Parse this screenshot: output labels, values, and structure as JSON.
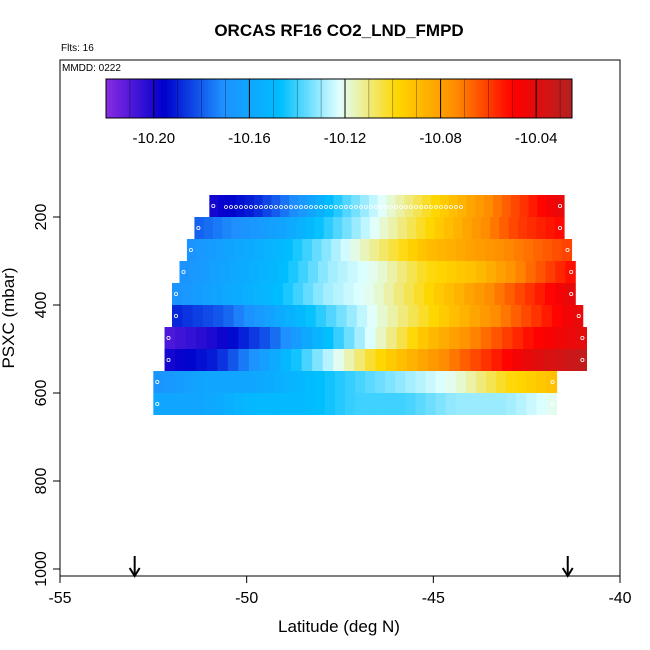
{
  "chart_data": {
    "type": "heatmap",
    "title": "ORCAS RF16 CO2_LND_FMPD",
    "subtitle_flights": "Flts: 16",
    "subtitle_date": "MMDD: 0222",
    "xlabel": "Latitude (deg N)",
    "ylabel": "PSXC (mbar)",
    "xlim": [
      -55,
      -40
    ],
    "ylim": [
      1000,
      0
    ],
    "x_ticks": [
      "-55",
      "-50",
      "-45",
      "-40"
    ],
    "y_ticks": [
      "200",
      "400",
      "600",
      "800",
      "1000"
    ],
    "colorbar": {
      "range": [
        -10.22,
        -10.025
      ],
      "ticks": [
        "-10.20",
        "-10.16",
        "-10.12",
        "-10.08",
        "-10.04"
      ],
      "colors": [
        "#8a2be2",
        "#0000cd",
        "#1e90ff",
        "#00bfff",
        "#e0ffff",
        "#ffd700",
        "#ff8c00",
        "#ff0000",
        "#b22222"
      ]
    },
    "markers_lat": [
      -53,
      -41.4
    ],
    "rows": [
      {
        "p": 175,
        "lat_min": -51.0,
        "lat_max": -41.5,
        "vals": [
          -10.2,
          -10.19,
          -10.17,
          -10.14,
          -10.12,
          -10.1,
          -10.08,
          -10.06,
          -10.04
        ]
      },
      {
        "p": 225,
        "lat_min": -51.4,
        "lat_max": -41.5,
        "vals": [
          -10.18,
          -10.17,
          -10.16,
          -10.14,
          -10.12,
          -10.1,
          -10.08,
          -10.06,
          -10.05
        ]
      },
      {
        "p": 275,
        "lat_min": -51.6,
        "lat_max": -41.3,
        "vals": [
          -10.17,
          -10.16,
          -10.15,
          -10.13,
          -10.11,
          -10.09,
          -10.08,
          -10.07,
          -10.06
        ]
      },
      {
        "p": 325,
        "lat_min": -51.8,
        "lat_max": -41.2,
        "vals": [
          -10.17,
          -10.16,
          -10.15,
          -10.13,
          -10.12,
          -10.1,
          -10.09,
          -10.07,
          -10.05
        ]
      },
      {
        "p": 375,
        "lat_min": -52.0,
        "lat_max": -41.2,
        "vals": [
          -10.17,
          -10.16,
          -10.15,
          -10.13,
          -10.12,
          -10.1,
          -10.08,
          -10.06,
          -10.04
        ]
      },
      {
        "p": 425,
        "lat_min": -52.0,
        "lat_max": -41.0,
        "vals": [
          -10.19,
          -10.18,
          -10.16,
          -10.14,
          -10.12,
          -10.1,
          -10.08,
          -10.06,
          -10.04
        ]
      },
      {
        "p": 475,
        "lat_min": -52.2,
        "lat_max": -40.9,
        "vals": [
          -10.21,
          -10.2,
          -10.18,
          -10.15,
          -10.12,
          -10.09,
          -10.07,
          -10.05,
          -10.04
        ]
      },
      {
        "p": 525,
        "lat_min": -52.2,
        "lat_max": -40.9,
        "vals": [
          -10.2,
          -10.19,
          -10.16,
          -10.13,
          -10.1,
          -10.08,
          -10.06,
          -10.04,
          -10.03
        ]
      },
      {
        "p": 575,
        "lat_min": -52.5,
        "lat_max": -41.7,
        "vals": [
          -10.17,
          -10.16,
          -10.16,
          -10.15,
          -10.14,
          -10.13,
          -10.12,
          -10.1,
          -10.09
        ]
      },
      {
        "p": 625,
        "lat_min": -52.5,
        "lat_max": -41.7,
        "vals": [
          -10.16,
          -10.16,
          -10.15,
          -10.15,
          -10.14,
          -10.14,
          -10.13,
          -10.13,
          -10.12
        ]
      }
    ]
  }
}
